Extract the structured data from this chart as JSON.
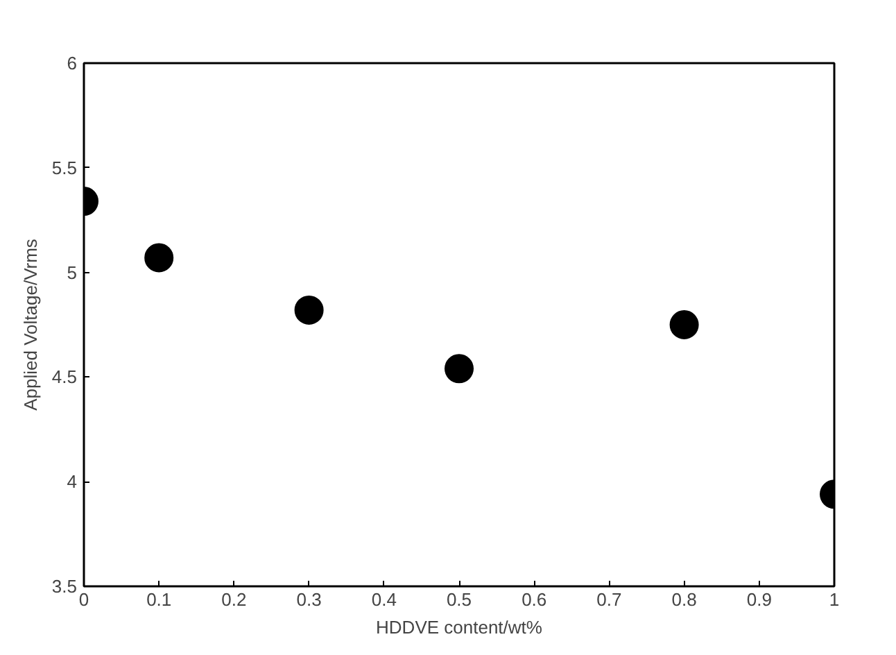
{
  "chart_data": {
    "type": "scatter",
    "xlabel": "HDDVE content/wt%",
    "ylabel": "Applied Voltage/Vrms",
    "x": [
      0,
      0.1,
      0.3,
      0.5,
      0.8,
      1
    ],
    "series": [
      {
        "color": "#000000",
        "values": [
          5.34,
          5.07,
          4.82,
          4.54,
          4.75,
          3.94
        ]
      }
    ],
    "xlim": [
      0,
      1
    ],
    "xticks": [
      0,
      0.1,
      0.2,
      0.3,
      0.4,
      0.5,
      0.6,
      0.7,
      0.8,
      0.9,
      1
    ],
    "ylim": [
      3.5,
      6
    ],
    "yticks": [
      3.5,
      4,
      4.5,
      5,
      5.5,
      6
    ],
    "grid": false,
    "marker": "circle"
  }
}
